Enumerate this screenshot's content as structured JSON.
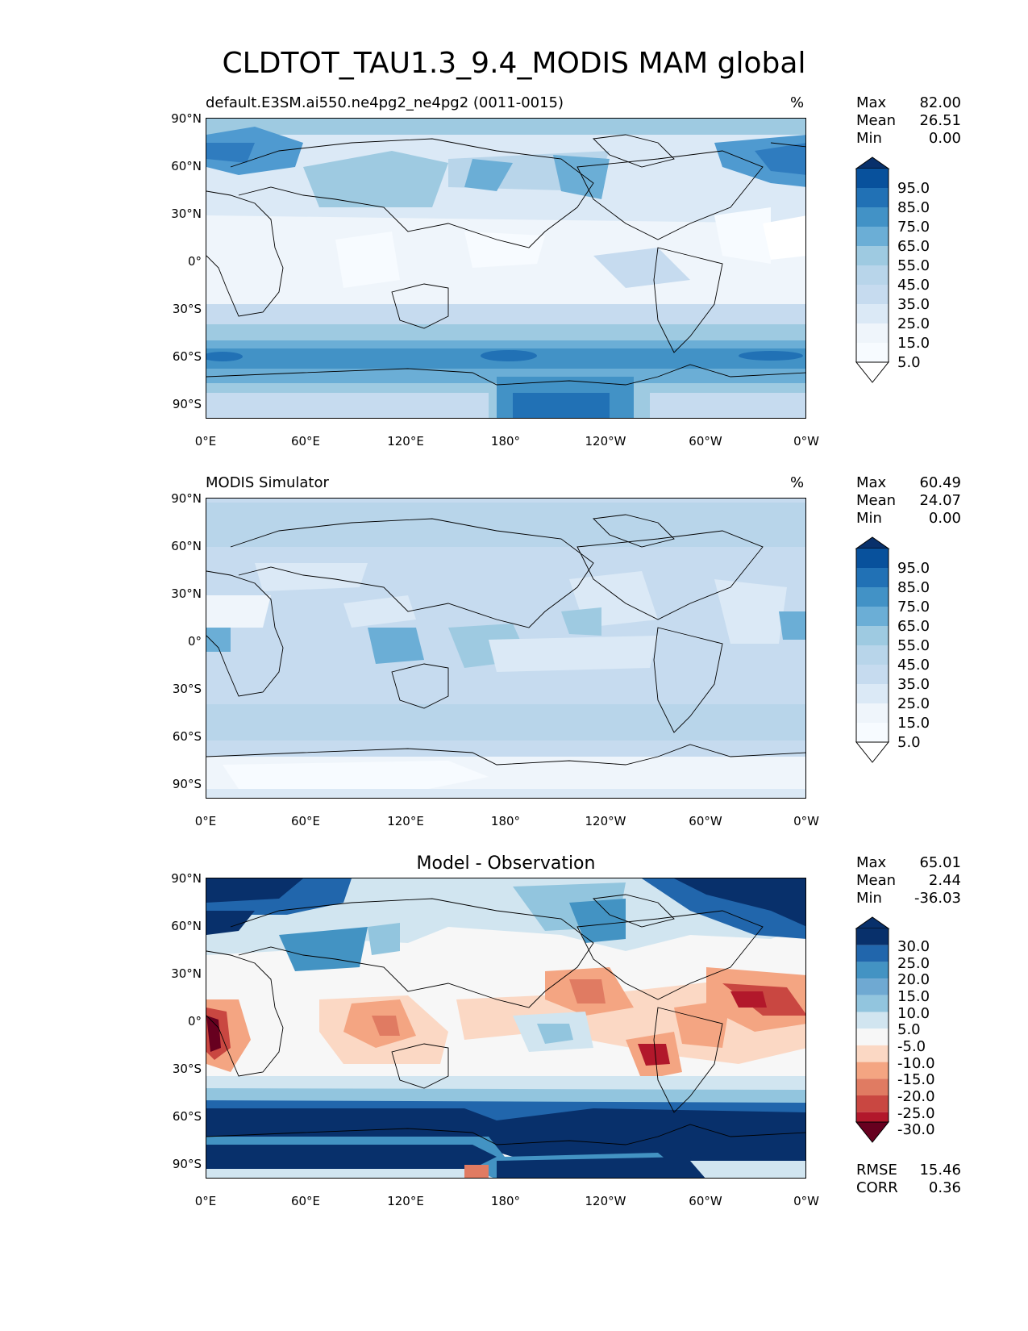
{
  "figure": {
    "title": "CLDTOT_TAU1.3_9.4_MODIS MAM global"
  },
  "axes": {
    "lat_labels": [
      "90°N",
      "60°N",
      "30°N",
      "0°",
      "30°S",
      "60°S",
      "90°S"
    ],
    "lon_labels": [
      "0°E",
      "60°E",
      "120°E",
      "180°",
      "120°W",
      "60°W",
      "0°W"
    ]
  },
  "panels": [
    {
      "subtitle": "default.E3SM.ai550.ne4pg2_ne4pg2 (0011-0015)",
      "units": "%",
      "stats": {
        "max_label": "Max",
        "max": "82.00",
        "mean_label": "Mean",
        "mean": "26.51",
        "min_label": "Min",
        "min": "0.00"
      },
      "colorbar": {
        "labels": [
          "95.0",
          "85.0",
          "75.0",
          "65.0",
          "55.0",
          "45.0",
          "35.0",
          "25.0",
          "15.0",
          "5.0"
        ],
        "colors": [
          "#08306b",
          "#08519c",
          "#2171b5",
          "#4292c6",
          "#6baed6",
          "#9ecae1",
          "#b8d5ea",
          "#c6dbef",
          "#dbe9f6",
          "#eff5fb",
          "#f7fbff"
        ]
      }
    },
    {
      "subtitle": "MODIS Simulator",
      "units": "%",
      "stats": {
        "max_label": "Max",
        "max": "60.49",
        "mean_label": "Mean",
        "mean": "24.07",
        "min_label": "Min",
        "min": "0.00"
      },
      "colorbar": {
        "labels": [
          "95.0",
          "85.0",
          "75.0",
          "65.0",
          "55.0",
          "45.0",
          "35.0",
          "25.0",
          "15.0",
          "5.0"
        ],
        "colors": [
          "#08306b",
          "#08519c",
          "#2171b5",
          "#4292c6",
          "#6baed6",
          "#9ecae1",
          "#b8d5ea",
          "#c6dbef",
          "#dbe9f6",
          "#eff5fb",
          "#f7fbff"
        ]
      }
    },
    {
      "title": "Model - Observation",
      "stats": {
        "max_label": "Max",
        "max": "65.01",
        "mean_label": "Mean",
        "mean": "2.44",
        "min_label": "Min",
        "min": "-36.03"
      },
      "colorbar": {
        "labels": [
          "30.0",
          "25.0",
          "20.0",
          "15.0",
          "10.0",
          "5.0",
          "-5.0",
          "-10.0",
          "-15.0",
          "-20.0",
          "-25.0",
          "-30.0"
        ],
        "colors": [
          "#08306b",
          "#2166ac",
          "#4393c3",
          "#6fa9d2",
          "#92c5de",
          "#d1e5f0",
          "#f7f7f7",
          "#fbd8c4",
          "#f4a582",
          "#e07b62",
          "#c94741",
          "#b2182b",
          "#67001f"
        ]
      },
      "metrics": {
        "rmse_label": "RMSE",
        "rmse": "15.46",
        "corr_label": "CORR",
        "corr": "0.36"
      }
    }
  ]
}
